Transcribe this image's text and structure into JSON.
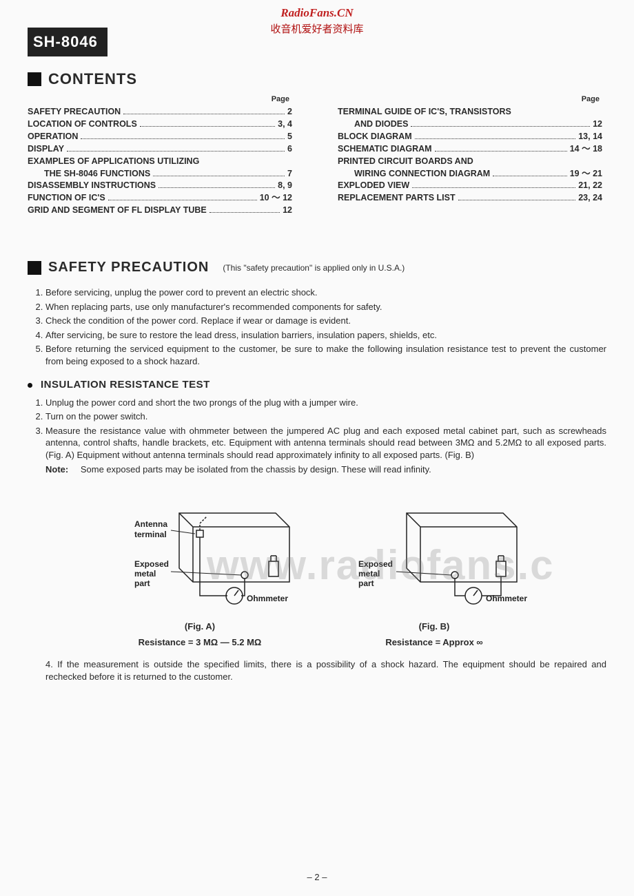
{
  "watermark": {
    "line1": "RadioFans.CN",
    "line2": "收音机爱好者资料库",
    "bg": "www.radiofans.c"
  },
  "model": "SH-8046",
  "contents": {
    "title": "CONTENTS",
    "page_label": "Page",
    "left": [
      {
        "label": "SAFETY PRECAUTION",
        "page": "2",
        "indent": false
      },
      {
        "label": "LOCATION OF CONTROLS",
        "page": "3, 4",
        "indent": false
      },
      {
        "label": "OPERATION",
        "page": "5",
        "indent": false
      },
      {
        "label": "DISPLAY",
        "page": "6",
        "indent": false
      },
      {
        "label": "EXAMPLES OF APPLICATIONS UTILIZING",
        "page": "",
        "indent": false
      },
      {
        "label": "THE SH-8046 FUNCTIONS",
        "page": "7",
        "indent": true
      },
      {
        "label": "DISASSEMBLY INSTRUCTIONS",
        "page": "8, 9",
        "indent": false
      },
      {
        "label": "FUNCTION OF IC'S",
        "page": "10 ～ 12",
        "indent": false
      },
      {
        "label": "GRID AND SEGMENT OF FL DISPLAY TUBE",
        "page": "12",
        "indent": false
      }
    ],
    "right": [
      {
        "label": "TERMINAL GUIDE OF IC'S, TRANSISTORS",
        "page": "",
        "indent": false
      },
      {
        "label": "AND DIODES",
        "page": "12",
        "indent": true
      },
      {
        "label": "BLOCK DIAGRAM",
        "page": "13, 14",
        "indent": false
      },
      {
        "label": "SCHEMATIC DIAGRAM",
        "page": "14 ～ 18",
        "indent": false
      },
      {
        "label": "PRINTED CIRCUIT BOARDS AND",
        "page": "",
        "indent": false
      },
      {
        "label": "WIRING CONNECTION DIAGRAM",
        "page": "19 ～ 21",
        "indent": true
      },
      {
        "label": "EXPLODED VIEW",
        "page": "21, 22",
        "indent": false
      },
      {
        "label": "REPLACEMENT PARTS LIST",
        "page": "23, 24",
        "indent": false
      }
    ]
  },
  "safety": {
    "title": "SAFETY PRECAUTION",
    "note": "(This \"safety precaution\" is applied only in U.S.A.)",
    "items": [
      "Before servicing, unplug the power cord to prevent an electric shock.",
      "When replacing parts, use only manufacturer's recommended components for safety.",
      "Check the condition of the power cord. Replace if wear or damage is evident.",
      "After servicing, be sure to restore the lead dress, insulation barriers, insulation papers, shields, etc.",
      "Before returning the serviced equipment to the customer, be sure to make the following insulation resistance test to prevent the customer from being exposed to a shock hazard."
    ]
  },
  "insulation": {
    "title": "INSULATION RESISTANCE TEST",
    "items": [
      "Unplug the power cord and short the two prongs of the plug with a jumper wire.",
      "Turn on the power switch.",
      "Measure the resistance value with ohmmeter between the jumpered AC plug and each exposed metal cabinet part, such as screwheads antenna, control shafts, handle brackets, etc. Equipment with antenna terminals should read between 3MΩ and 5.2MΩ to all exposed parts. (Fig. A)  Equipment without antenna terminals should read approximately infinity to all exposed parts. (Fig. B)"
    ],
    "note_label": "Note:",
    "note_text": "Some exposed parts may be isolated from the chassis by design. These will read infinity.",
    "item4": "4. If the measurement is outside the specified limits, there is a possibility of a shock hazard. The equipment should be repaired and rechecked before it is returned to the customer."
  },
  "figA": {
    "antenna": "Antenna",
    "terminal": "terminal",
    "exposed": "Exposed",
    "metal": "metal",
    "part": "part",
    "ohm": "Ohmmeter",
    "caption": "(Fig. A)",
    "resistance": "Resistance = 3 MΩ — 5.2 MΩ"
  },
  "figB": {
    "exposed": "Exposed",
    "metal": "metal",
    "part": "part",
    "ohm": "Ohmmeter",
    "caption": "(Fig. B)",
    "resistance": "Resistance = Approx  ∞"
  },
  "page_number": "– 2 –",
  "colors": {
    "text": "#2a2a2a",
    "badge_bg": "#222222",
    "wm_red": "#c02020"
  }
}
